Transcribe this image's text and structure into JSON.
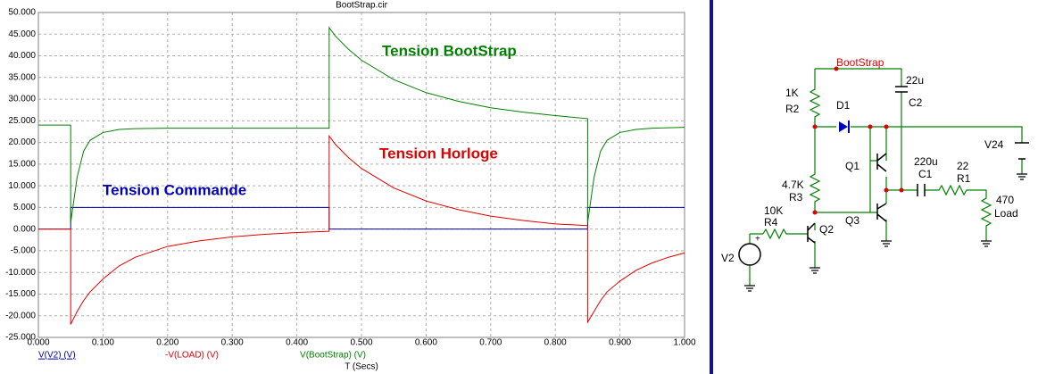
{
  "chart_data": {
    "type": "line",
    "title": "BootStrap.cir",
    "x_label": "T (Secs)",
    "x": [
      0,
      0.05,
      0.05,
      0.06,
      0.07,
      0.08,
      0.1,
      0.125,
      0.15,
      0.2,
      0.25,
      0.3,
      0.35,
      0.4,
      0.45,
      0.45,
      0.46,
      0.48,
      0.5,
      0.55,
      0.6,
      0.65,
      0.7,
      0.75,
      0.8,
      0.85,
      0.85,
      0.86,
      0.87,
      0.88,
      0.9,
      0.925,
      0.95,
      0.975,
      1.0
    ],
    "series": [
      {
        "name": "V(V2) (V)",
        "color": "#0000a0",
        "values": [
          0,
          0,
          5,
          5,
          5,
          5,
          5,
          5,
          5,
          5,
          5,
          5,
          5,
          5,
          5,
          0,
          0,
          0,
          0,
          0,
          0,
          0,
          0,
          0,
          0,
          0,
          5,
          5,
          5,
          5,
          5,
          5,
          5,
          5,
          5
        ]
      },
      {
        "name": "-V(LOAD) (V)",
        "color": "#e00000",
        "values": [
          0,
          0,
          -22,
          -19,
          -16.5,
          -14.5,
          -11.5,
          -8.5,
          -6.5,
          -4,
          -2.7,
          -1.8,
          -1.2,
          -0.8,
          -0.5,
          21.5,
          19.5,
          16.5,
          14,
          9.5,
          6.5,
          4.5,
          3,
          2,
          1.2,
          0.8,
          -21.5,
          -19,
          -16.5,
          -14.5,
          -12,
          -9.5,
          -7.8,
          -6.5,
          -5.5
        ]
      },
      {
        "name": "V(BootStrap) (V)",
        "color": "#008000",
        "values": [
          24,
          24,
          1.5,
          12,
          18,
          20.5,
          22.3,
          23,
          23.2,
          23.3,
          23.3,
          23.3,
          23.3,
          23.3,
          23.3,
          46.5,
          44.5,
          41.5,
          39,
          34.5,
          31.5,
          29.5,
          28,
          27,
          26.2,
          25.5,
          1.5,
          12,
          18,
          20.5,
          22.3,
          23,
          23.3,
          23.4,
          23.5
        ]
      }
    ],
    "xlim": [
      0,
      1
    ],
    "xticks": [
      {
        "value": 0,
        "label": "0.000"
      },
      {
        "value": 0.1,
        "label": "0.100"
      },
      {
        "value": 0.2,
        "label": "0.200"
      },
      {
        "value": 0.3,
        "label": "0.300"
      },
      {
        "value": 0.4,
        "label": "0.400"
      },
      {
        "value": 0.5,
        "label": "0.500"
      },
      {
        "value": 0.6,
        "label": "0.600"
      },
      {
        "value": 0.7,
        "label": "0.700"
      },
      {
        "value": 0.8,
        "label": "0.800"
      },
      {
        "value": 0.9,
        "label": "0.900"
      },
      {
        "value": 1,
        "label": "1.000"
      }
    ],
    "ylim": [
      -25,
      50
    ],
    "yticks": [
      {
        "value": -25,
        "label": "-25.000"
      },
      {
        "value": -20,
        "label": "-20.000"
      },
      {
        "value": -15,
        "label": "-15.000"
      },
      {
        "value": -10,
        "label": "-10.000"
      },
      {
        "value": -5,
        "label": "-5.000"
      },
      {
        "value": 0,
        "label": "0.000"
      },
      {
        "value": 5,
        "label": "5.000"
      },
      {
        "value": 10,
        "label": "10.000"
      },
      {
        "value": 15,
        "label": "15.000"
      },
      {
        "value": 20,
        "label": "20.000"
      },
      {
        "value": 25,
        "label": "25.000"
      },
      {
        "value": 30,
        "label": "30.000"
      },
      {
        "value": 35,
        "label": "35.000"
      },
      {
        "value": 40,
        "label": "40.000"
      },
      {
        "value": 45,
        "label": "45.000"
      },
      {
        "value": 50,
        "label": "50.000"
      }
    ],
    "grid": true,
    "annotations": [
      {
        "text": "Tension BootStrap",
        "color": "#008000"
      },
      {
        "text": "Tension Horloge",
        "color": "#e00000"
      },
      {
        "text": "Tension Commande",
        "color": "#0000c0"
      }
    ]
  },
  "schematic": {
    "node_label": "BootStrap",
    "components": [
      {
        "ref": "R2",
        "value": "1K"
      },
      {
        "ref": "C2",
        "value": "22u"
      },
      {
        "ref": "D1"
      },
      {
        "ref": "V24"
      },
      {
        "ref": "R3",
        "value": "4.7K"
      },
      {
        "ref": "Q1"
      },
      {
        "ref": "Q3"
      },
      {
        "ref": "C1",
        "value": "220u"
      },
      {
        "ref": "R1",
        "value": "22"
      },
      {
        "ref": "Load",
        "value": "470"
      },
      {
        "ref": "R4",
        "value": "10K"
      },
      {
        "ref": "Q2"
      },
      {
        "ref": "V2"
      }
    ]
  }
}
